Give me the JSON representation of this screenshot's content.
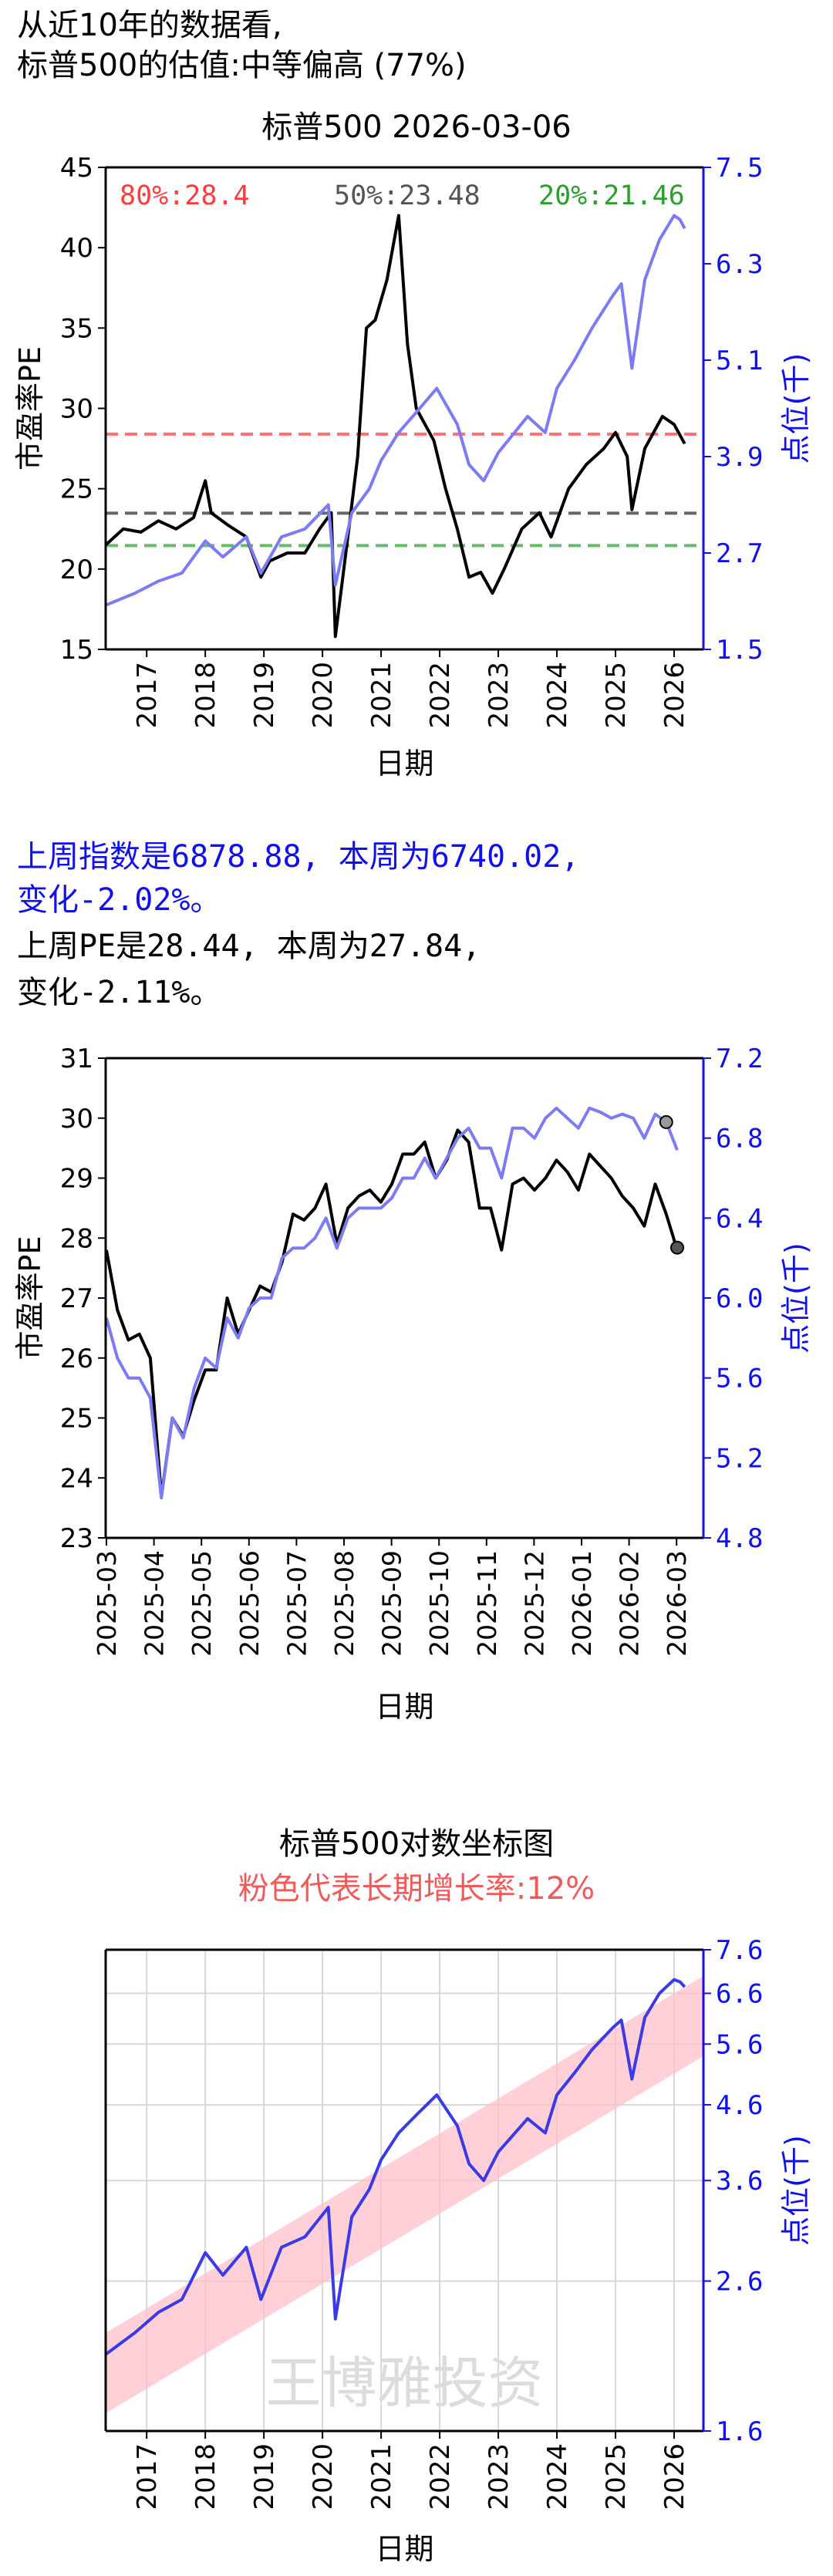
{
  "intro": {
    "line1": "从近10年的数据看,",
    "line2": "标普500的估值:中等偏高 (77%)"
  },
  "week_summary": {
    "index_line1": "上周指数是6878.88, 本周为6740.02,",
    "index_line2": "变化-2.02%。",
    "pe_line1": "上周PE是28.44, 本周为27.84,",
    "pe_line2": "变化-2.11%。"
  },
  "chart_data": [
    {
      "type": "line",
      "title": "标普500 2026-03-06",
      "xlabel": "日期",
      "ylabel_left": "市盈率PE",
      "ylabel_right": "点位(千)",
      "x_range": [
        2016.3,
        2026.5
      ],
      "ylim_left": [
        15,
        45
      ],
      "ylim_right": [
        1.5,
        7.5
      ],
      "x_ticks": [
        "2017",
        "2018",
        "2019",
        "2020",
        "2021",
        "2022",
        "2023",
        "2024",
        "2025",
        "2026"
      ],
      "y_ticks_left": [
        "15",
        "20",
        "25",
        "30",
        "35",
        "40",
        "45"
      ],
      "y_ticks_right": [
        "1.5",
        "2.7",
        "3.9",
        "5.1",
        "6.3",
        "7.5"
      ],
      "grid": false,
      "reference_lines": [
        {
          "label": "80%:28.4",
          "value": 28.4,
          "color": "#ff3b3b"
        },
        {
          "label": "50%:23.48",
          "value": 23.48,
          "color": "#555555"
        },
        {
          "label": "20%:21.46",
          "value": 21.46,
          "color": "#2ca02c"
        }
      ],
      "series": [
        {
          "name": "市盈率PE",
          "axis": "left",
          "color": "#000000",
          "points": [
            [
              2016.3,
              21.5
            ],
            [
              2016.6,
              22.5
            ],
            [
              2016.9,
              22.3
            ],
            [
              2017.2,
              23.0
            ],
            [
              2017.5,
              22.5
            ],
            [
              2017.8,
              23.2
            ],
            [
              2018.0,
              25.5
            ],
            [
              2018.1,
              23.5
            ],
            [
              2018.4,
              22.7
            ],
            [
              2018.7,
              22.0
            ],
            [
              2018.95,
              19.5
            ],
            [
              2019.1,
              20.5
            ],
            [
              2019.4,
              21.0
            ],
            [
              2019.7,
              21.0
            ],
            [
              2019.95,
              22.5
            ],
            [
              2020.15,
              23.5
            ],
            [
              2020.22,
              15.8
            ],
            [
              2020.45,
              22.5
            ],
            [
              2020.6,
              27.0
            ],
            [
              2020.75,
              35.0
            ],
            [
              2020.9,
              35.5
            ],
            [
              2021.1,
              38.0
            ],
            [
              2021.3,
              42.0
            ],
            [
              2021.45,
              34.0
            ],
            [
              2021.6,
              30.0
            ],
            [
              2021.9,
              28.0
            ],
            [
              2022.1,
              25.0
            ],
            [
              2022.3,
              22.5
            ],
            [
              2022.5,
              19.5
            ],
            [
              2022.7,
              19.8
            ],
            [
              2022.9,
              18.5
            ],
            [
              2023.1,
              20.0
            ],
            [
              2023.4,
              22.5
            ],
            [
              2023.7,
              23.5
            ],
            [
              2023.9,
              22.0
            ],
            [
              2024.2,
              25.0
            ],
            [
              2024.5,
              26.5
            ],
            [
              2024.8,
              27.5
            ],
            [
              2025.0,
              28.5
            ],
            [
              2025.2,
              27.0
            ],
            [
              2025.28,
              23.7
            ],
            [
              2025.5,
              27.5
            ],
            [
              2025.8,
              29.5
            ],
            [
              2026.0,
              29.0
            ],
            [
              2026.18,
              27.8
            ]
          ]
        },
        {
          "name": "点位(千)",
          "axis": "right",
          "color": "#7b7bf5",
          "points": [
            [
              2016.3,
              2.05
            ],
            [
              2016.8,
              2.2
            ],
            [
              2017.2,
              2.35
            ],
            [
              2017.6,
              2.45
            ],
            [
              2018.0,
              2.85
            ],
            [
              2018.3,
              2.65
            ],
            [
              2018.7,
              2.9
            ],
            [
              2018.95,
              2.45
            ],
            [
              2019.3,
              2.9
            ],
            [
              2019.7,
              3.0
            ],
            [
              2020.1,
              3.3
            ],
            [
              2020.22,
              2.3
            ],
            [
              2020.5,
              3.2
            ],
            [
              2020.8,
              3.5
            ],
            [
              2021.0,
              3.85
            ],
            [
              2021.3,
              4.2
            ],
            [
              2021.6,
              4.45
            ],
            [
              2021.95,
              4.75
            ],
            [
              2022.3,
              4.3
            ],
            [
              2022.5,
              3.8
            ],
            [
              2022.75,
              3.6
            ],
            [
              2023.0,
              3.95
            ],
            [
              2023.5,
              4.4
            ],
            [
              2023.8,
              4.2
            ],
            [
              2024.0,
              4.75
            ],
            [
              2024.3,
              5.1
            ],
            [
              2024.6,
              5.5
            ],
            [
              2024.95,
              5.9
            ],
            [
              2025.1,
              6.05
            ],
            [
              2025.28,
              5.0
            ],
            [
              2025.5,
              6.1
            ],
            [
              2025.75,
              6.6
            ],
            [
              2026.0,
              6.9
            ],
            [
              2026.1,
              6.85
            ],
            [
              2026.18,
              6.74
            ]
          ]
        }
      ]
    },
    {
      "type": "line",
      "xlabel": "日期",
      "ylabel_left": "市盈率PE",
      "ylabel_right": "点位(千)",
      "x_range": [
        2025.0,
        2026.2
      ],
      "ylim_left": [
        23,
        31
      ],
      "ylim_right": [
        4.8,
        7.2
      ],
      "x_ticks": [
        "2025-03",
        "2025-04",
        "2025-05",
        "2025-06",
        "2025-07",
        "2025-08",
        "2025-09",
        "2025-10",
        "2025-11",
        "2025-12",
        "2026-01",
        "2026-02",
        "2026-03"
      ],
      "y_ticks_left": [
        "23",
        "24",
        "25",
        "26",
        "27",
        "28",
        "29",
        "30",
        "31"
      ],
      "y_ticks_right": [
        "4.8",
        "5.2",
        "5.6",
        "6.0",
        "6.4",
        "6.8",
        "7.2"
      ],
      "grid": false,
      "series": [
        {
          "name": "市盈率PE",
          "axis": "left",
          "color": "#000000",
          "points": [
            [
              0,
              27.8
            ],
            [
              1,
              26.8
            ],
            [
              2,
              26.3
            ],
            [
              3,
              26.4
            ],
            [
              4,
              26.0
            ],
            [
              5,
              23.7
            ],
            [
              6,
              25.0
            ],
            [
              7,
              24.7
            ],
            [
              8,
              25.3
            ],
            [
              9,
              25.8
            ],
            [
              10,
              25.8
            ],
            [
              11,
              27.0
            ],
            [
              12,
              26.4
            ],
            [
              13,
              26.8
            ],
            [
              14,
              27.2
            ],
            [
              15,
              27.1
            ],
            [
              16,
              27.6
            ],
            [
              17,
              28.4
            ],
            [
              18,
              28.3
            ],
            [
              19,
              28.5
            ],
            [
              20,
              28.9
            ],
            [
              21,
              27.9
            ],
            [
              22,
              28.5
            ],
            [
              23,
              28.7
            ],
            [
              24,
              28.8
            ],
            [
              25,
              28.6
            ],
            [
              26,
              28.9
            ],
            [
              27,
              29.4
            ],
            [
              28,
              29.4
            ],
            [
              29,
              29.6
            ],
            [
              30,
              29.0
            ],
            [
              31,
              29.3
            ],
            [
              32,
              29.8
            ],
            [
              33,
              29.6
            ],
            [
              34,
              28.5
            ],
            [
              35,
              28.5
            ],
            [
              36,
              27.8
            ],
            [
              37,
              28.9
            ],
            [
              38,
              29.0
            ],
            [
              39,
              28.8
            ],
            [
              40,
              29.0
            ],
            [
              41,
              29.3
            ],
            [
              42,
              29.1
            ],
            [
              43,
              28.8
            ],
            [
              44,
              29.4
            ],
            [
              45,
              29.2
            ],
            [
              46,
              29.0
            ],
            [
              47,
              28.7
            ],
            [
              48,
              28.5
            ],
            [
              49,
              28.2
            ],
            [
              50,
              28.9
            ],
            [
              51,
              28.4
            ],
            [
              52,
              27.8
            ]
          ]
        },
        {
          "name": "点位(千)",
          "axis": "right",
          "color": "#7b7bf5",
          "points": [
            [
              0,
              5.9
            ],
            [
              1,
              5.7
            ],
            [
              2,
              5.6
            ],
            [
              3,
              5.6
            ],
            [
              4,
              5.5
            ],
            [
              5,
              5.0
            ],
            [
              6,
              5.4
            ],
            [
              7,
              5.3
            ],
            [
              8,
              5.55
            ],
            [
              9,
              5.7
            ],
            [
              10,
              5.65
            ],
            [
              11,
              5.9
            ],
            [
              12,
              5.8
            ],
            [
              13,
              5.95
            ],
            [
              14,
              6.0
            ],
            [
              15,
              6.0
            ],
            [
              16,
              6.2
            ],
            [
              17,
              6.25
            ],
            [
              18,
              6.25
            ],
            [
              19,
              6.3
            ],
            [
              20,
              6.4
            ],
            [
              21,
              6.25
            ],
            [
              22,
              6.4
            ],
            [
              23,
              6.45
            ],
            [
              24,
              6.45
            ],
            [
              25,
              6.45
            ],
            [
              26,
              6.5
            ],
            [
              27,
              6.6
            ],
            [
              28,
              6.6
            ],
            [
              29,
              6.7
            ],
            [
              30,
              6.6
            ],
            [
              31,
              6.7
            ],
            [
              32,
              6.8
            ],
            [
              33,
              6.85
            ],
            [
              34,
              6.75
            ],
            [
              35,
              6.75
            ],
            [
              36,
              6.6
            ],
            [
              37,
              6.85
            ],
            [
              38,
              6.85
            ],
            [
              39,
              6.8
            ],
            [
              40,
              6.9
            ],
            [
              41,
              6.95
            ],
            [
              42,
              6.9
            ],
            [
              43,
              6.85
            ],
            [
              44,
              6.95
            ],
            [
              45,
              6.93
            ],
            [
              46,
              6.9
            ],
            [
              47,
              6.92
            ],
            [
              48,
              6.9
            ],
            [
              49,
              6.8
            ],
            [
              50,
              6.92
            ],
            [
              51,
              6.88
            ],
            [
              52,
              6.74
            ]
          ]
        }
      ],
      "markers": [
        {
          "series": "市盈率PE",
          "week": 52,
          "value": 27.84
        },
        {
          "series": "点位(千)",
          "week": 51,
          "value": 6.88
        }
      ]
    },
    {
      "type": "line",
      "title": "标普500对数坐标图",
      "subtitle": "粉色代表长期增长率:12%",
      "xlabel": "日期",
      "ylabel_right": "点位(千)",
      "log_scale": true,
      "x_range": [
        2016.3,
        2026.5
      ],
      "ylim_right": [
        1.6,
        7.6
      ],
      "x_ticks": [
        "2017",
        "2018",
        "2019",
        "2020",
        "2021",
        "2022",
        "2023",
        "2024",
        "2025",
        "2026"
      ],
      "y_ticks_right": [
        "1.6",
        "2.6",
        "3.6",
        "4.6",
        "5.6",
        "6.6",
        "7.6"
      ],
      "grid": true,
      "trend_band": {
        "growth_rate": 0.12,
        "color": "#ffc0cb"
      },
      "watermark": "王博雅投资",
      "series": [
        {
          "name": "点位(千)",
          "axis": "right",
          "color": "#3a3ae8",
          "points": [
            [
              2016.3,
              2.05
            ],
            [
              2016.8,
              2.2
            ],
            [
              2017.2,
              2.35
            ],
            [
              2017.6,
              2.45
            ],
            [
              2018.0,
              2.85
            ],
            [
              2018.3,
              2.65
            ],
            [
              2018.7,
              2.9
            ],
            [
              2018.95,
              2.45
            ],
            [
              2019.3,
              2.9
            ],
            [
              2019.7,
              3.0
            ],
            [
              2020.1,
              3.3
            ],
            [
              2020.22,
              2.3
            ],
            [
              2020.5,
              3.2
            ],
            [
              2020.8,
              3.5
            ],
            [
              2021.0,
              3.85
            ],
            [
              2021.3,
              4.2
            ],
            [
              2021.6,
              4.45
            ],
            [
              2021.95,
              4.75
            ],
            [
              2022.3,
              4.3
            ],
            [
              2022.5,
              3.8
            ],
            [
              2022.75,
              3.6
            ],
            [
              2023.0,
              3.95
            ],
            [
              2023.5,
              4.4
            ],
            [
              2023.8,
              4.2
            ],
            [
              2024.0,
              4.75
            ],
            [
              2024.3,
              5.1
            ],
            [
              2024.6,
              5.5
            ],
            [
              2024.95,
              5.9
            ],
            [
              2025.1,
              6.05
            ],
            [
              2025.28,
              5.0
            ],
            [
              2025.5,
              6.1
            ],
            [
              2025.75,
              6.6
            ],
            [
              2026.0,
              6.9
            ],
            [
              2026.1,
              6.85
            ],
            [
              2026.18,
              6.74
            ]
          ]
        }
      ]
    }
  ]
}
